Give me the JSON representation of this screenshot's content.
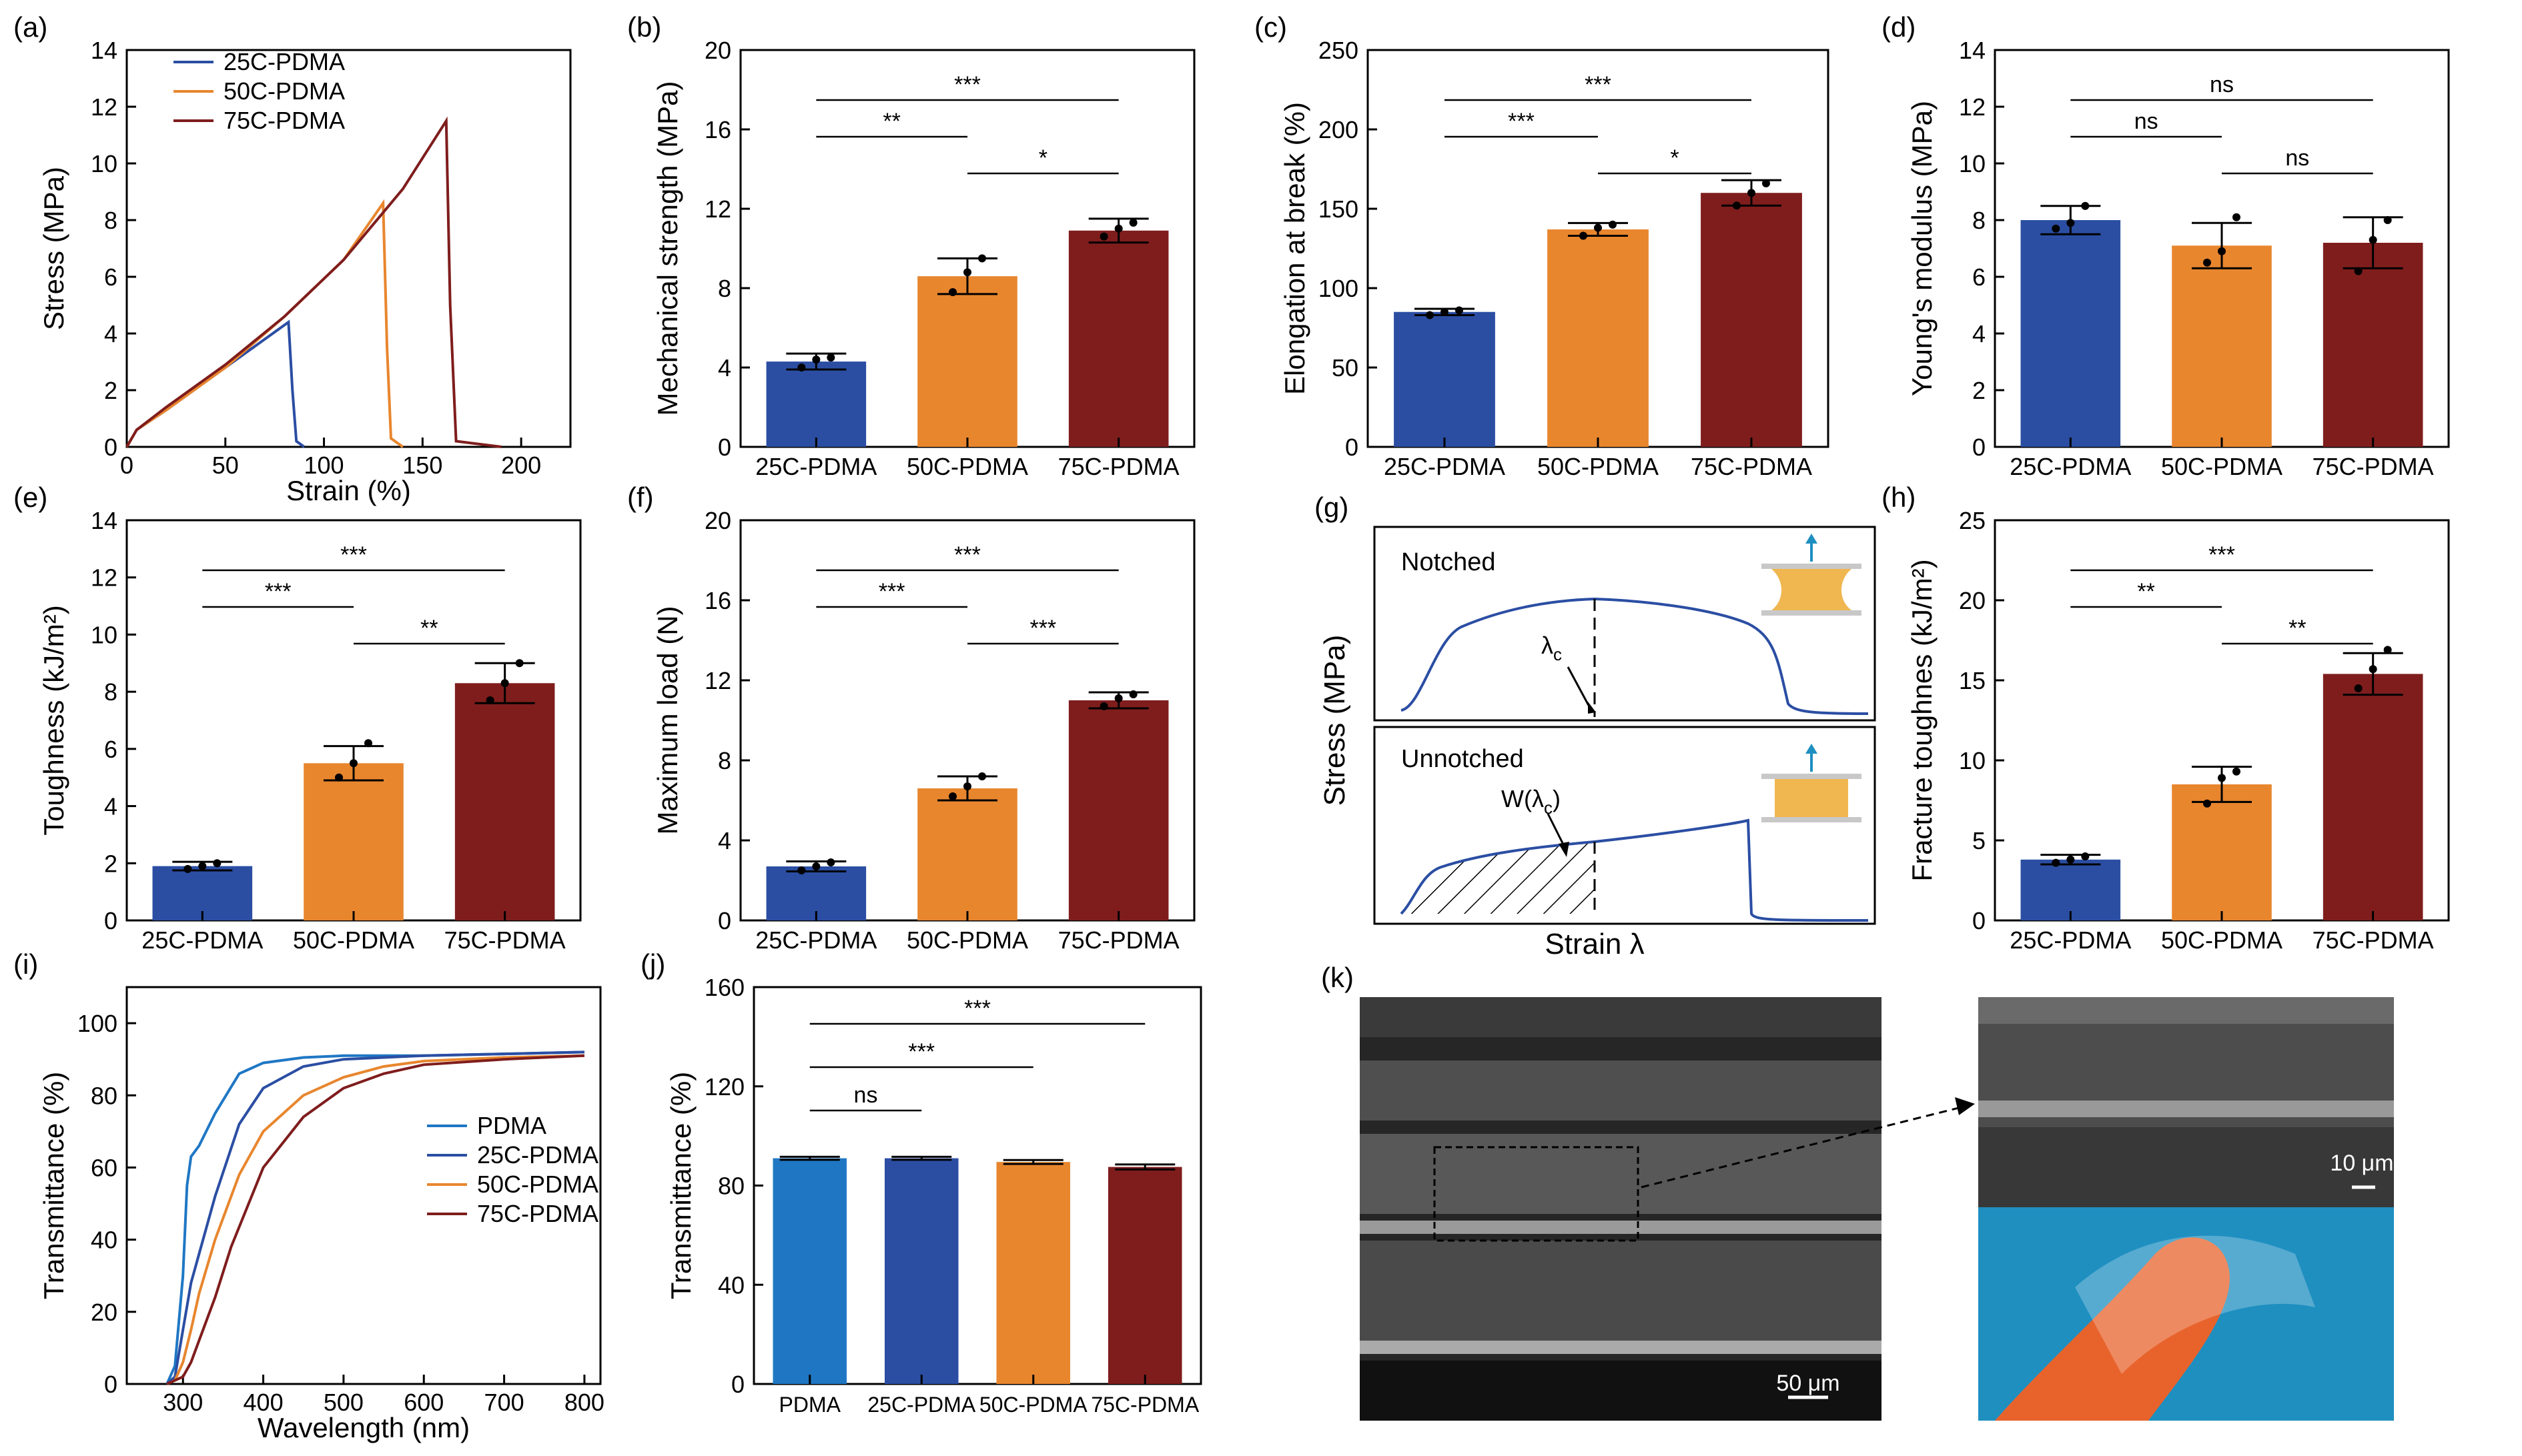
{
  "colors": {
    "PDMA": "#1f77c4",
    "25C-PDMA": "#2b4ea3",
    "50C-PDMA": "#e8862e",
    "75C-PDMA": "#7f1d1d",
    "axis": "#000000",
    "sem_bg": "#2a2a2a",
    "photo_bg": "#1f8fc0"
  },
  "chart_data": [
    {
      "panel": "(a)",
      "type": "line",
      "xlabel": "Strain (%)",
      "ylabel": "Stress (MPa)",
      "xlim": [
        0,
        225
      ],
      "ylim": [
        0,
        14
      ],
      "xticks": [
        0,
        50,
        100,
        150,
        200
      ],
      "yticks": [
        0,
        2,
        4,
        6,
        8,
        10,
        12,
        14
      ],
      "legend": "top-left",
      "series": [
        {
          "name": "25C-PDMA",
          "color_key": "25C-PDMA",
          "x": [
            0,
            5,
            20,
            40,
            60,
            82,
            84,
            86,
            90
          ],
          "y": [
            0,
            0.6,
            1.3,
            2.3,
            3.3,
            4.4,
            2.0,
            0.2,
            0
          ]
        },
        {
          "name": "50C-PDMA",
          "color_key": "50C-PDMA",
          "x": [
            0,
            5,
            20,
            50,
            80,
            110,
            130,
            132,
            134,
            140
          ],
          "y": [
            0,
            0.6,
            1.3,
            2.8,
            4.6,
            6.6,
            8.6,
            3.5,
            0.3,
            0
          ]
        },
        {
          "name": "75C-PDMA",
          "color_key": "75C-PDMA",
          "x": [
            0,
            5,
            20,
            50,
            80,
            110,
            140,
            162,
            164,
            167,
            190
          ],
          "y": [
            0,
            0.6,
            1.4,
            2.9,
            4.6,
            6.6,
            9.1,
            11.5,
            5.0,
            0.2,
            0
          ]
        }
      ]
    },
    {
      "panel": "(b)",
      "type": "bar",
      "ylabel": "Mechanical strength (MPa)",
      "ylim": [
        0,
        20
      ],
      "yticks": [
        0,
        4,
        8,
        12,
        16,
        20
      ],
      "categories": [
        "25C-PDMA",
        "50C-PDMA",
        "75C-PDMA"
      ],
      "values": [
        4.3,
        8.6,
        10.9
      ],
      "errors": [
        0.4,
        0.9,
        0.6
      ],
      "points": [
        [
          4.0,
          4.4,
          4.5
        ],
        [
          7.8,
          8.8,
          9.5
        ],
        [
          10.6,
          11.0,
          11.3
        ]
      ],
      "bar_colors": [
        "25C-PDMA",
        "50C-PDMA",
        "75C-PDMA"
      ],
      "significance": [
        {
          "from": 0,
          "to": 2,
          "label": "***"
        },
        {
          "from": 0,
          "to": 1,
          "label": "**"
        },
        {
          "from": 1,
          "to": 2,
          "label": "*"
        }
      ]
    },
    {
      "panel": "(c)",
      "type": "bar",
      "ylabel": "Elongation at break (%)",
      "ylim": [
        0,
        250
      ],
      "yticks": [
        0,
        50,
        100,
        150,
        200,
        250
      ],
      "categories": [
        "25C-PDMA",
        "50C-PDMA",
        "75C-PDMA"
      ],
      "values": [
        85,
        137,
        160
      ],
      "errors": [
        2,
        4,
        8
      ],
      "points": [
        [
          83,
          85,
          86
        ],
        [
          133,
          138,
          140
        ],
        [
          152,
          160,
          166
        ]
      ],
      "bar_colors": [
        "25C-PDMA",
        "50C-PDMA",
        "75C-PDMA"
      ],
      "significance": [
        {
          "from": 0,
          "to": 2,
          "label": "***"
        },
        {
          "from": 0,
          "to": 1,
          "label": "***"
        },
        {
          "from": 1,
          "to": 2,
          "label": "*"
        }
      ]
    },
    {
      "panel": "(d)",
      "type": "bar",
      "ylabel": "Young's modulus (MPa)",
      "ylim": [
        0,
        14
      ],
      "yticks": [
        0,
        2,
        4,
        6,
        8,
        10,
        12,
        14
      ],
      "categories": [
        "25C-PDMA",
        "50C-PDMA",
        "75C-PDMA"
      ],
      "values": [
        8.0,
        7.1,
        7.2
      ],
      "errors": [
        0.5,
        0.8,
        0.9
      ],
      "points": [
        [
          7.7,
          7.9,
          8.5
        ],
        [
          6.5,
          6.9,
          8.1
        ],
        [
          6.2,
          7.3,
          8.0
        ]
      ],
      "bar_colors": [
        "25C-PDMA",
        "50C-PDMA",
        "75C-PDMA"
      ],
      "significance": [
        {
          "from": 0,
          "to": 2,
          "label": "ns"
        },
        {
          "from": 0,
          "to": 1,
          "label": "ns"
        },
        {
          "from": 1,
          "to": 2,
          "label": "ns"
        }
      ]
    },
    {
      "panel": "(e)",
      "type": "bar",
      "ylabel": "Toughness (kJ/m²)",
      "ylim": [
        0,
        14
      ],
      "yticks": [
        0,
        2,
        4,
        6,
        8,
        10,
        12,
        14
      ],
      "categories": [
        "25C-PDMA",
        "50C-PDMA",
        "75C-PDMA"
      ],
      "values": [
        1.9,
        5.5,
        8.3
      ],
      "errors": [
        0.15,
        0.6,
        0.7
      ],
      "points": [
        [
          1.8,
          1.9,
          2.0
        ],
        [
          5.0,
          5.5,
          6.2
        ],
        [
          7.7,
          8.3,
          9.0
        ]
      ],
      "bar_colors": [
        "25C-PDMA",
        "50C-PDMA",
        "75C-PDMA"
      ],
      "significance": [
        {
          "from": 0,
          "to": 2,
          "label": "***"
        },
        {
          "from": 0,
          "to": 1,
          "label": "***"
        },
        {
          "from": 1,
          "to": 2,
          "label": "**"
        }
      ]
    },
    {
      "panel": "(f)",
      "type": "bar",
      "ylabel": "Maximum load (N)",
      "ylim": [
        0,
        20
      ],
      "yticks": [
        0,
        4,
        8,
        12,
        16,
        20
      ],
      "categories": [
        "25C-PDMA",
        "50C-PDMA",
        "75C-PDMA"
      ],
      "values": [
        2.7,
        6.6,
        11.0
      ],
      "errors": [
        0.25,
        0.6,
        0.4
      ],
      "points": [
        [
          2.5,
          2.7,
          2.9
        ],
        [
          6.2,
          6.7,
          7.2
        ],
        [
          10.7,
          11.1,
          11.3
        ]
      ],
      "bar_colors": [
        "25C-PDMA",
        "50C-PDMA",
        "75C-PDMA"
      ],
      "significance": [
        {
          "from": 0,
          "to": 2,
          "label": "***"
        },
        {
          "from": 0,
          "to": 1,
          "label": "***"
        },
        {
          "from": 1,
          "to": 2,
          "label": "***"
        }
      ]
    },
    {
      "panel": "(h)",
      "type": "bar",
      "ylabel": "Fracture toughnes (kJ/m²)",
      "ylim": [
        0,
        25
      ],
      "yticks": [
        0,
        5,
        10,
        15,
        20,
        25
      ],
      "categories": [
        "25C-PDMA",
        "50C-PDMA",
        "75C-PDMA"
      ],
      "values": [
        3.8,
        8.5,
        15.4
      ],
      "errors": [
        0.3,
        1.1,
        1.3
      ],
      "points": [
        [
          3.6,
          3.8,
          4.0
        ],
        [
          7.3,
          8.9,
          9.3
        ],
        [
          14.5,
          15.7,
          16.9
        ]
      ],
      "bar_colors": [
        "25C-PDMA",
        "50C-PDMA",
        "75C-PDMA"
      ],
      "significance": [
        {
          "from": 0,
          "to": 2,
          "label": "***"
        },
        {
          "from": 0,
          "to": 1,
          "label": "**"
        },
        {
          "from": 1,
          "to": 2,
          "label": "**"
        }
      ]
    },
    {
      "panel": "(i)",
      "type": "line",
      "xlabel": "Wavelength (nm)",
      "ylabel": "Transmittance (%)",
      "xlim": [
        230,
        820
      ],
      "ylim": [
        0,
        110
      ],
      "xticks": [
        300,
        400,
        500,
        600,
        700,
        800
      ],
      "yticks": [
        0,
        20,
        40,
        60,
        80,
        100
      ],
      "legend": "center-right",
      "series": [
        {
          "name": "PDMA",
          "color_key": "PDMA",
          "x": [
            280,
            290,
            300,
            305,
            310,
            320,
            340,
            370,
            400,
            450,
            500,
            600,
            700,
            800
          ],
          "y": [
            0,
            5,
            30,
            55,
            63,
            66,
            75,
            86,
            89,
            90.5,
            91,
            91,
            91.5,
            92
          ]
        },
        {
          "name": "25C-PDMA",
          "color_key": "25C-PDMA",
          "x": [
            280,
            290,
            300,
            310,
            320,
            340,
            370,
            400,
            450,
            500,
            600,
            700,
            800
          ],
          "y": [
            0,
            2,
            15,
            28,
            36,
            52,
            72,
            82,
            88,
            90,
            91,
            91.5,
            92
          ]
        },
        {
          "name": "50C-PDMA",
          "color_key": "50C-PDMA",
          "x": [
            280,
            290,
            300,
            310,
            320,
            340,
            370,
            400,
            450,
            500,
            550,
            600,
            700,
            800
          ],
          "y": [
            0,
            1,
            6,
            15,
            25,
            40,
            58,
            70,
            80,
            85,
            88,
            89.5,
            90.5,
            91
          ]
        },
        {
          "name": "75C-PDMA",
          "color_key": "75C-PDMA",
          "x": [
            280,
            300,
            310,
            320,
            340,
            360,
            400,
            450,
            500,
            550,
            600,
            700,
            800
          ],
          "y": [
            0,
            2,
            6,
            12,
            24,
            38,
            60,
            74,
            82,
            86,
            88.5,
            90,
            91
          ]
        }
      ]
    },
    {
      "panel": "(j)",
      "type": "bar",
      "ylabel": "Transmittance (%)",
      "ylim": [
        0,
        160
      ],
      "yticks": [
        0,
        40,
        80,
        120,
        160
      ],
      "categories": [
        "PDMA",
        "25C-PDMA",
        "50C-PDMA",
        "75C-PDMA"
      ],
      "values": [
        91,
        91,
        89.5,
        87.5
      ],
      "errors": [
        0.6,
        0.6,
        0.8,
        1.0
      ],
      "bar_colors": [
        "PDMA",
        "25C-PDMA",
        "50C-PDMA",
        "75C-PDMA"
      ],
      "significance": [
        {
          "from": 0,
          "to": 3,
          "label": "***"
        },
        {
          "from": 0,
          "to": 2,
          "label": "***"
        },
        {
          "from": 0,
          "to": 1,
          "label": "ns"
        }
      ]
    }
  ],
  "schematic_g": {
    "panel": "(g)",
    "ylabel": "Stress (MPa)",
    "xlabel": "Strain λ",
    "top_label": "Notched",
    "bottom_label": "Unnotched",
    "lambda_label": "λ",
    "lambda_sub": "c",
    "work_label": "W(λ",
    "work_sub": "c",
    "work_close": ")"
  },
  "images_k": {
    "panel": "(k)",
    "scale_left": "50 μm",
    "scale_right": "10 μm"
  }
}
